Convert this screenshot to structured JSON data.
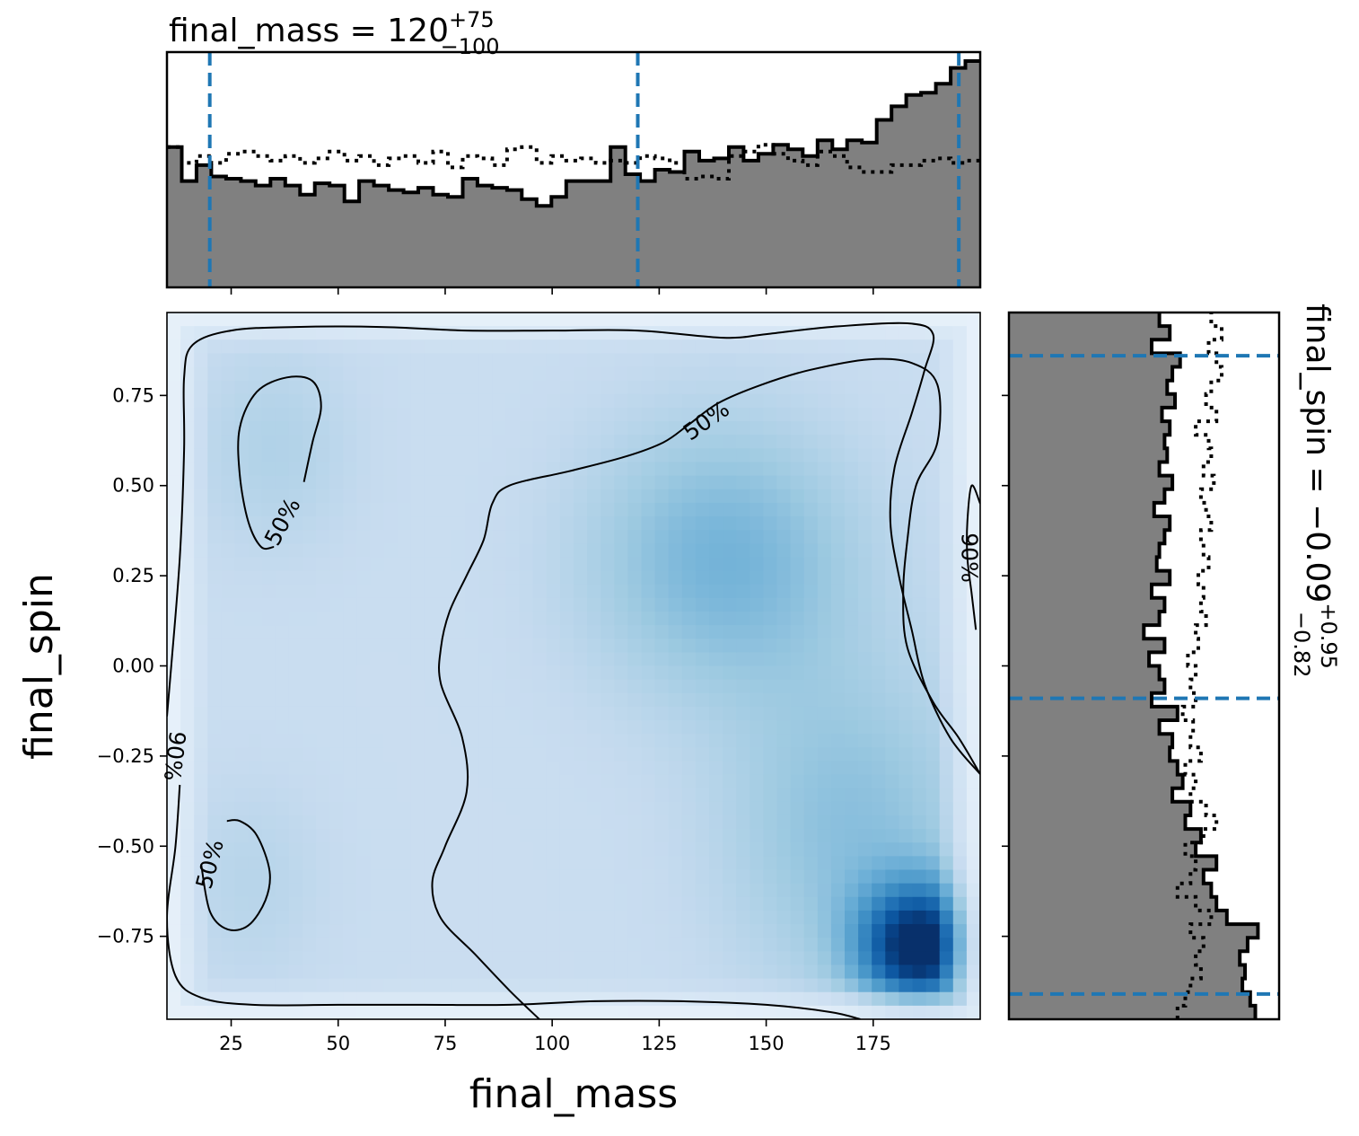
{
  "chart_data": [
    {
      "type": "heatmap",
      "name": "2d posterior density with credible contours",
      "xlabel": "final_mass",
      "ylabel": "final_spin",
      "xlim": [
        10,
        200
      ],
      "ylim": [
        -0.98,
        0.98
      ],
      "xticks": [
        25,
        50,
        75,
        100,
        125,
        150,
        175
      ],
      "xtick_labels": [
        "25",
        "50",
        "75",
        "100",
        "125",
        "150",
        "175"
      ],
      "yticks": [
        -0.75,
        -0.5,
        -0.25,
        0.0,
        0.25,
        0.5,
        0.75
      ],
      "ytick_labels": [
        "−0.75",
        "−0.50",
        "−0.25",
        "0.00",
        "0.25",
        "0.50",
        "0.75"
      ],
      "colormap": "Blues",
      "density_peaks": [
        {
          "x": 186,
          "y": -0.78,
          "weight": 1.0
        },
        {
          "x": 140,
          "y": 0.3,
          "weight": 0.42
        }
      ],
      "contours": [
        {
          "label": "90%",
          "paths": [
            [
              [
                200,
                -0.3
              ],
              [
                193,
                -0.2
              ],
              [
                187,
                -0.05
              ],
              [
                184,
                0.1
              ],
              [
                181,
                0.25
              ],
              [
                179,
                0.4
              ],
              [
                180,
                0.55
              ],
              [
                184,
                0.7
              ],
              [
                187,
                0.82
              ],
              [
                189,
                0.92
              ],
              [
                183,
                0.95
              ],
              [
                165,
                0.94
              ],
              [
                150,
                0.92
              ],
              [
                140,
                0.91
              ],
              [
                120,
                0.93
              ],
              [
                100,
                0.93
              ],
              [
                80,
                0.93
              ],
              [
                60,
                0.94
              ],
              [
                40,
                0.94
              ],
              [
                25,
                0.93
              ],
              [
                16,
                0.89
              ],
              [
                14,
                0.8
              ],
              [
                14,
                0.6
              ],
              [
                13,
                0.3
              ],
              [
                11,
                0.0
              ],
              [
                10,
                -0.14
              ]
            ],
            [
              [
                13,
                -0.33
              ],
              [
                12,
                -0.5
              ],
              [
                10,
                -0.7
              ],
              [
                12,
                -0.86
              ],
              [
                18,
                -0.92
              ],
              [
                30,
                -0.94
              ],
              [
                50,
                -0.94
              ],
              [
                70,
                -0.94
              ],
              [
                90,
                -0.94
              ],
              [
                110,
                -0.93
              ],
              [
                130,
                -0.93
              ],
              [
                150,
                -0.94
              ],
              [
                165,
                -0.96
              ],
              [
                172,
                -0.98
              ]
            ],
            [
              [
                200,
                0.45
              ],
              [
                198,
                0.5
              ],
              [
                197,
                0.4
              ],
              [
                197,
                0.3
              ],
              [
                198,
                0.2
              ],
              [
                199,
                0.1
              ]
            ]
          ]
        },
        {
          "label": "50%",
          "paths": [
            [
              [
                97,
                -0.98
              ],
              [
                90,
                -0.9
              ],
              [
                82,
                -0.8
              ],
              [
                74,
                -0.7
              ],
              [
                72,
                -0.6
              ],
              [
                75,
                -0.5
              ],
              [
                80,
                -0.35
              ],
              [
                79,
                -0.2
              ],
              [
                74,
                -0.05
              ],
              [
                74,
                0.05
              ],
              [
                76,
                0.15
              ],
              [
                80,
                0.25
              ],
              [
                84,
                0.35
              ],
              [
                86,
                0.45
              ],
              [
                90,
                0.5
              ],
              [
                104,
                0.54
              ],
              [
                117,
                0.58
              ],
              [
                126,
                0.62
              ],
              [
                132,
                0.67
              ],
              [
                139,
                0.73
              ],
              [
                149,
                0.78
              ],
              [
                160,
                0.82
              ],
              [
                174,
                0.85
              ],
              [
                184,
                0.84
              ],
              [
                190,
                0.78
              ],
              [
                190,
                0.62
              ],
              [
                185,
                0.5
              ],
              [
                183,
                0.35
              ],
              [
                182,
                0.2
              ],
              [
                183,
                0.05
              ],
              [
                189,
                -0.1
              ],
              [
                195,
                -0.2
              ],
              [
                200,
                -0.3
              ]
            ],
            [
              [
                42,
                0.51
              ],
              [
                44,
                0.62
              ],
              [
                46,
                0.72
              ],
              [
                44,
                0.79
              ],
              [
                38,
                0.8
              ],
              [
                31,
                0.76
              ],
              [
                27,
                0.66
              ],
              [
                27,
                0.53
              ],
              [
                29,
                0.4
              ],
              [
                32,
                0.33
              ],
              [
                35,
                0.33
              ]
            ],
            [
              [
                18,
                -0.55
              ],
              [
                20,
                -0.68
              ],
              [
                24,
                -0.73
              ],
              [
                29,
                -0.72
              ],
              [
                33,
                -0.65
              ],
              [
                34,
                -0.57
              ],
              [
                31,
                -0.47
              ],
              [
                27,
                -0.43
              ],
              [
                24,
                -0.43
              ]
            ]
          ],
          "label_positions": [
            [
              136,
              0.68
            ],
            [
              37,
              0.4
            ],
            [
              20,
              -0.55
            ]
          ]
        }
      ]
    },
    {
      "type": "bar",
      "name": "final_mass marginal",
      "title_param": "final_mass",
      "title_median": "120",
      "title_plus": "+75",
      "title_minus": "−100",
      "bin_edges": [
        10,
        200
      ],
      "filled_values": [
        0.62,
        0.47,
        0.54,
        0.49,
        0.48,
        0.47,
        0.45,
        0.48,
        0.45,
        0.41,
        0.46,
        0.45,
        0.38,
        0.47,
        0.45,
        0.43,
        0.42,
        0.44,
        0.41,
        0.4,
        0.48,
        0.45,
        0.44,
        0.43,
        0.39,
        0.36,
        0.4,
        0.47,
        0.47,
        0.47,
        0.62,
        0.5,
        0.47,
        0.52,
        0.51,
        0.6,
        0.56,
        0.57,
        0.62,
        0.56,
        0.59,
        0.63,
        0.61,
        0.58,
        0.65,
        0.61,
        0.65,
        0.64,
        0.74,
        0.8,
        0.85,
        0.86,
        0.9,
        0.97,
        1.0
      ],
      "dotted_values": [
        0.62,
        0.55,
        0.58,
        0.55,
        0.59,
        0.6,
        0.58,
        0.56,
        0.58,
        0.55,
        0.57,
        0.6,
        0.56,
        0.58,
        0.54,
        0.57,
        0.58,
        0.55,
        0.6,
        0.53,
        0.58,
        0.57,
        0.54,
        0.61,
        0.62,
        0.55,
        0.58,
        0.56,
        0.57,
        0.55,
        0.56,
        0.55,
        0.58,
        0.57,
        0.55,
        0.48,
        0.49,
        0.48,
        0.58,
        0.6,
        0.63,
        0.59,
        0.56,
        0.54,
        0.6,
        0.58,
        0.53,
        0.51,
        0.51,
        0.54,
        0.54,
        0.56,
        0.57,
        0.55,
        0.56
      ],
      "lines": {
        "lower": 20,
        "median": 120,
        "upper": 195
      },
      "color": "#808080"
    },
    {
      "type": "bar",
      "name": "final_spin marginal",
      "title_param": "final_spin",
      "title_median": "−0.09",
      "title_plus": "+0.95",
      "title_minus": "−0.82",
      "bin_edges": [
        -0.98,
        0.98
      ],
      "filled_values": [
        0.95,
        0.93,
        0.9,
        0.91,
        0.89,
        0.92,
        0.96,
        0.84,
        0.8,
        0.78,
        0.75,
        0.8,
        0.72,
        0.74,
        0.68,
        0.7,
        0.63,
        0.67,
        0.65,
        0.62,
        0.63,
        0.58,
        0.65,
        0.55,
        0.6,
        0.58,
        0.54,
        0.6,
        0.52,
        0.58,
        0.6,
        0.55,
        0.62,
        0.57,
        0.58,
        0.6,
        0.62,
        0.56,
        0.6,
        0.63,
        0.58,
        0.61,
        0.6,
        0.62,
        0.59,
        0.64,
        0.61,
        0.63,
        0.66,
        0.55,
        0.62,
        0.58
      ],
      "dotted_values": [
        0.65,
        0.68,
        0.7,
        0.74,
        0.72,
        0.75,
        0.7,
        0.78,
        0.72,
        0.65,
        0.7,
        0.72,
        0.68,
        0.75,
        0.8,
        0.76,
        0.7,
        0.72,
        0.68,
        0.74,
        0.7,
        0.71,
        0.67,
        0.72,
        0.7,
        0.72,
        0.69,
        0.73,
        0.72,
        0.76,
        0.74,
        0.75,
        0.73,
        0.77,
        0.75,
        0.74,
        0.78,
        0.76,
        0.74,
        0.79,
        0.75,
        0.78,
        0.77,
        0.72,
        0.8,
        0.76,
        0.78,
        0.82,
        0.8,
        0.77,
        0.82,
        0.78
      ],
      "lines": {
        "lower": -0.91,
        "median": -0.09,
        "upper": 0.86
      },
      "color": "#808080"
    }
  ],
  "colors": {
    "credible_line": "#1f77b4",
    "hist_fill": "#808080",
    "contour": "#000000"
  }
}
